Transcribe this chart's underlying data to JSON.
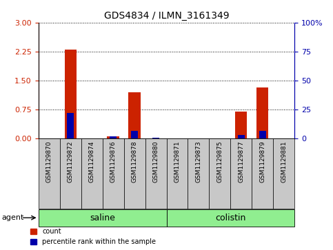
{
  "title": "GDS4834 / ILMN_3161349",
  "samples": [
    "GSM1129870",
    "GSM1129872",
    "GSM1129874",
    "GSM1129876",
    "GSM1129878",
    "GSM1129880",
    "GSM1129871",
    "GSM1129873",
    "GSM1129875",
    "GSM1129877",
    "GSM1129879",
    "GSM1129881"
  ],
  "count_values": [
    0.0,
    2.3,
    0.0,
    0.07,
    1.2,
    0.0,
    0.0,
    0.0,
    0.0,
    0.7,
    1.32,
    0.0
  ],
  "percentile_values_pct": [
    0.0,
    22.0,
    0.0,
    2.2,
    6.5,
    0.6,
    0.0,
    0.0,
    0.0,
    3.3,
    6.5,
    0.0
  ],
  "left_ylim": [
    0,
    3
  ],
  "right_ylim": [
    0,
    100
  ],
  "left_yticks": [
    0,
    0.75,
    1.5,
    2.25,
    3
  ],
  "right_yticks": [
    0,
    25,
    50,
    75,
    100
  ],
  "right_yticklabels": [
    "0",
    "25",
    "50",
    "75",
    "100%"
  ],
  "groups": [
    {
      "label": "saline",
      "start": 0,
      "end": 5
    },
    {
      "label": "colistin",
      "start": 6,
      "end": 11
    }
  ],
  "bar_width": 0.55,
  "count_color": "#CC2200",
  "percentile_color": "#0000AA",
  "cell_bg": "#C8C8C8",
  "plot_bg": "#FFFFFF",
  "group_color": "#90EE90"
}
